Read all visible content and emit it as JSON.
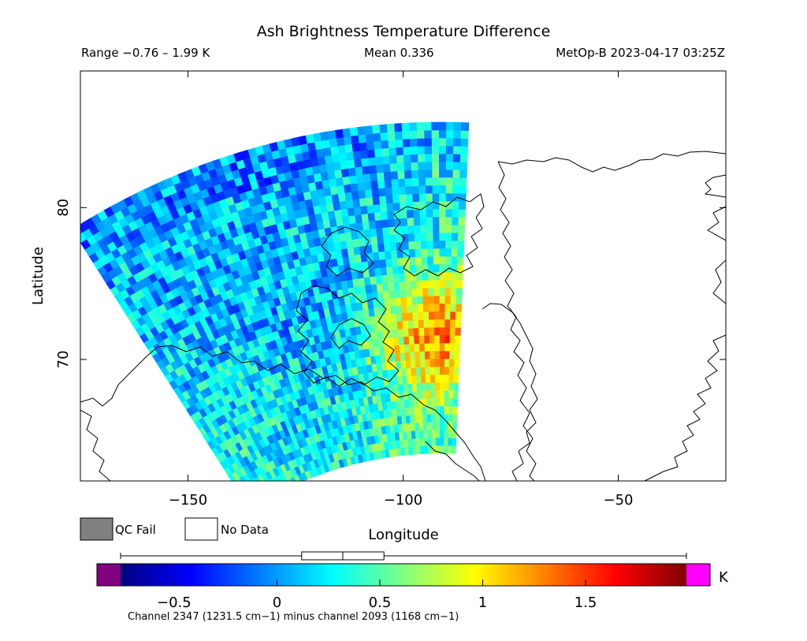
{
  "chart_data": {
    "type": "heatmap",
    "title": "Ash Brightness Temperature Difference",
    "range_text": "Range −0.76 – 1.99 K",
    "mean_text": "Mean 0.336",
    "satellite_text": "MetOp-B 2023-04-17 03:25Z",
    "xlabel": "Longitude",
    "ylabel": "Latitude",
    "x_ticks": [
      {
        "value": -150,
        "label": "−150"
      },
      {
        "value": -100,
        "label": "−100"
      },
      {
        "value": -50,
        "label": "−50"
      }
    ],
    "y_ticks": [
      {
        "value": 70,
        "label": "70"
      },
      {
        "value": 80,
        "label": "80"
      }
    ],
    "xlim": [
      -175,
      -25
    ],
    "ylim": [
      62,
      89
    ],
    "legend": {
      "qc_fail_label": "QC Fail",
      "qc_fail_color": "#808080",
      "no_data_label": "No Data",
      "no_data_color": "#ffffff"
    },
    "colorbar": {
      "min": -0.76,
      "max": 1.99,
      "unit": "K",
      "under_color": "#800080",
      "over_color": "#ff00ff",
      "colormap": [
        "#000080",
        "#0000ff",
        "#0080ff",
        "#00ffff",
        "#80ff80",
        "#ffff00",
        "#ff8000",
        "#ff0000",
        "#800000"
      ],
      "ticks": [
        {
          "value": -0.5,
          "label": "−0.5"
        },
        {
          "value": 0,
          "label": "0"
        },
        {
          "value": 0.5,
          "label": "0.5"
        },
        {
          "value": 1,
          "label": "1"
        },
        {
          "value": 1.5,
          "label": "1.5"
        }
      ],
      "boxplot": {
        "whisker_low": -0.76,
        "q1": 0.12,
        "median": 0.32,
        "q3": 0.52,
        "whisker_high": 1.99
      },
      "caption": "Channel 2347 (1231.5 cm−1) minus channel 2093 (1168 cm−1)"
    }
  }
}
